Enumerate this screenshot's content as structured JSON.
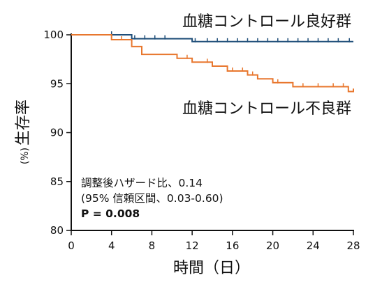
{
  "chart_data": {
    "type": "line",
    "title": "",
    "xlabel": "時間（日）",
    "ylabel": "生存率",
    "ylabel_unit": "(%)",
    "xlim": [
      0,
      28
    ],
    "ylim": [
      80,
      100
    ],
    "xticks": [
      "0",
      "4",
      "8",
      "12",
      "16",
      "20",
      "24",
      "28"
    ],
    "yticks": [
      "80",
      "85",
      "90",
      "95",
      "100"
    ],
    "grid": false,
    "legend": "direct labels",
    "series": [
      {
        "name": "血糖コントロール良好群",
        "color": "#1f4e79",
        "step_points": [
          [
            0,
            100
          ],
          [
            6,
            100
          ],
          [
            6,
            99.6
          ],
          [
            12,
            99.6
          ],
          [
            12,
            99.3
          ],
          [
            28,
            99.3
          ]
        ],
        "censor_times": [
          4,
          6.3,
          7.3,
          8.3,
          9.3,
          12.3,
          13.5,
          14.5,
          15.5,
          16.5,
          17.5,
          18.5,
          19.5,
          20.5,
          21.5,
          22.5,
          23.5,
          24.5,
          25.5,
          26.5,
          27.6
        ]
      },
      {
        "name": "血糖コントロール不良群",
        "color": "#e8772e",
        "step_points": [
          [
            0,
            100
          ],
          [
            4,
            100
          ],
          [
            4,
            99.5
          ],
          [
            6,
            99.5
          ],
          [
            6,
            98.8
          ],
          [
            7,
            98.8
          ],
          [
            7,
            98.0
          ],
          [
            10.5,
            98.0
          ],
          [
            10.5,
            97.6
          ],
          [
            12,
            97.6
          ],
          [
            12,
            97.2
          ],
          [
            14,
            97.2
          ],
          [
            14,
            96.8
          ],
          [
            15.5,
            96.8
          ],
          [
            15.5,
            96.3
          ],
          [
            17.5,
            96.3
          ],
          [
            17.5,
            95.9
          ],
          [
            18.5,
            95.9
          ],
          [
            18.5,
            95.5
          ],
          [
            20,
            95.5
          ],
          [
            20,
            95.1
          ],
          [
            22,
            95.1
          ],
          [
            22,
            94.7
          ],
          [
            27.5,
            94.7
          ],
          [
            27.5,
            94.2
          ],
          [
            28,
            94.2
          ],
          [
            28,
            94.5
          ]
        ],
        "censor_times": [
          5,
          11.5,
          13.5,
          16,
          17,
          18,
          20.5,
          23,
          24.5,
          26,
          27
        ]
      }
    ],
    "curve_labels": [
      "血糖コントロール良好群",
      "血糖コントロール不良群"
    ],
    "annotations": [
      "調整後ハザード比、0.14",
      "(95% 信頼区間、0.03-0.60)",
      "P = 0.008"
    ]
  }
}
